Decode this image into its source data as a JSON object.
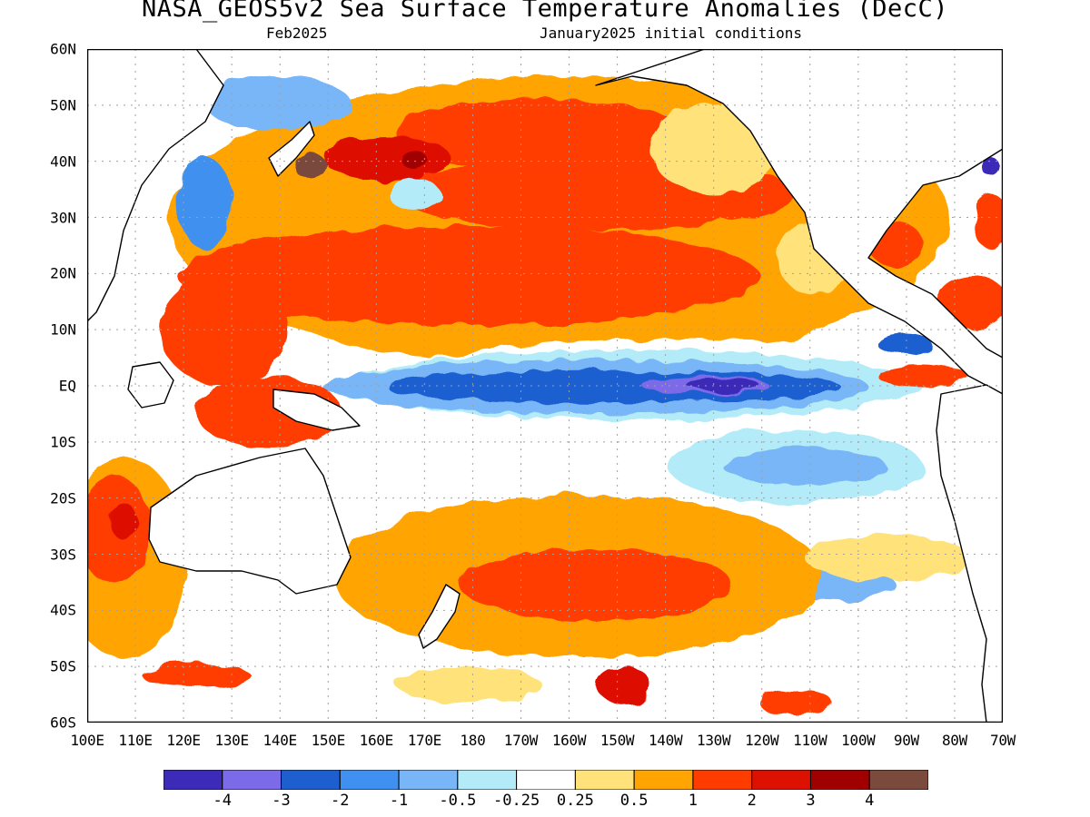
{
  "title": "NASA_GEOS5v2 Sea Surface Temperature Anomalies (DecC)",
  "subtitle_left": "Feb2025",
  "subtitle_right": "January2025 initial conditions",
  "lat_labels": [
    "60N",
    "50N",
    "40N",
    "30N",
    "20N",
    "10N",
    "EQ",
    "10S",
    "20S",
    "30S",
    "40S",
    "50S",
    "60S"
  ],
  "lon_labels": [
    "100E",
    "110E",
    "120E",
    "130E",
    "140E",
    "150E",
    "160E",
    "170E",
    "180",
    "170W",
    "160W",
    "150W",
    "140W",
    "130W",
    "120W",
    "110W",
    "100W",
    "90W",
    "80W",
    "70W"
  ],
  "colorbar": {
    "colors": [
      "#3b2bb8",
      "#7b6be8",
      "#1e5fd0",
      "#3f90f0",
      "#78b6f8",
      "#b3ecf8",
      "#ffffff",
      "#ffe27a",
      "#ffa400",
      "#ff3c00",
      "#dd1100",
      "#a00000",
      "#7a4a3c"
    ],
    "labels": [
      "-4",
      "-3",
      "-2",
      "-1",
      "-0.5",
      "-0.25",
      "0.25",
      "0.5",
      "1",
      "2",
      "3",
      "4"
    ]
  },
  "map": {
    "land_color": "#ffffff",
    "coastline_color": "#000000",
    "gridline_color": "#a0a0a0"
  }
}
